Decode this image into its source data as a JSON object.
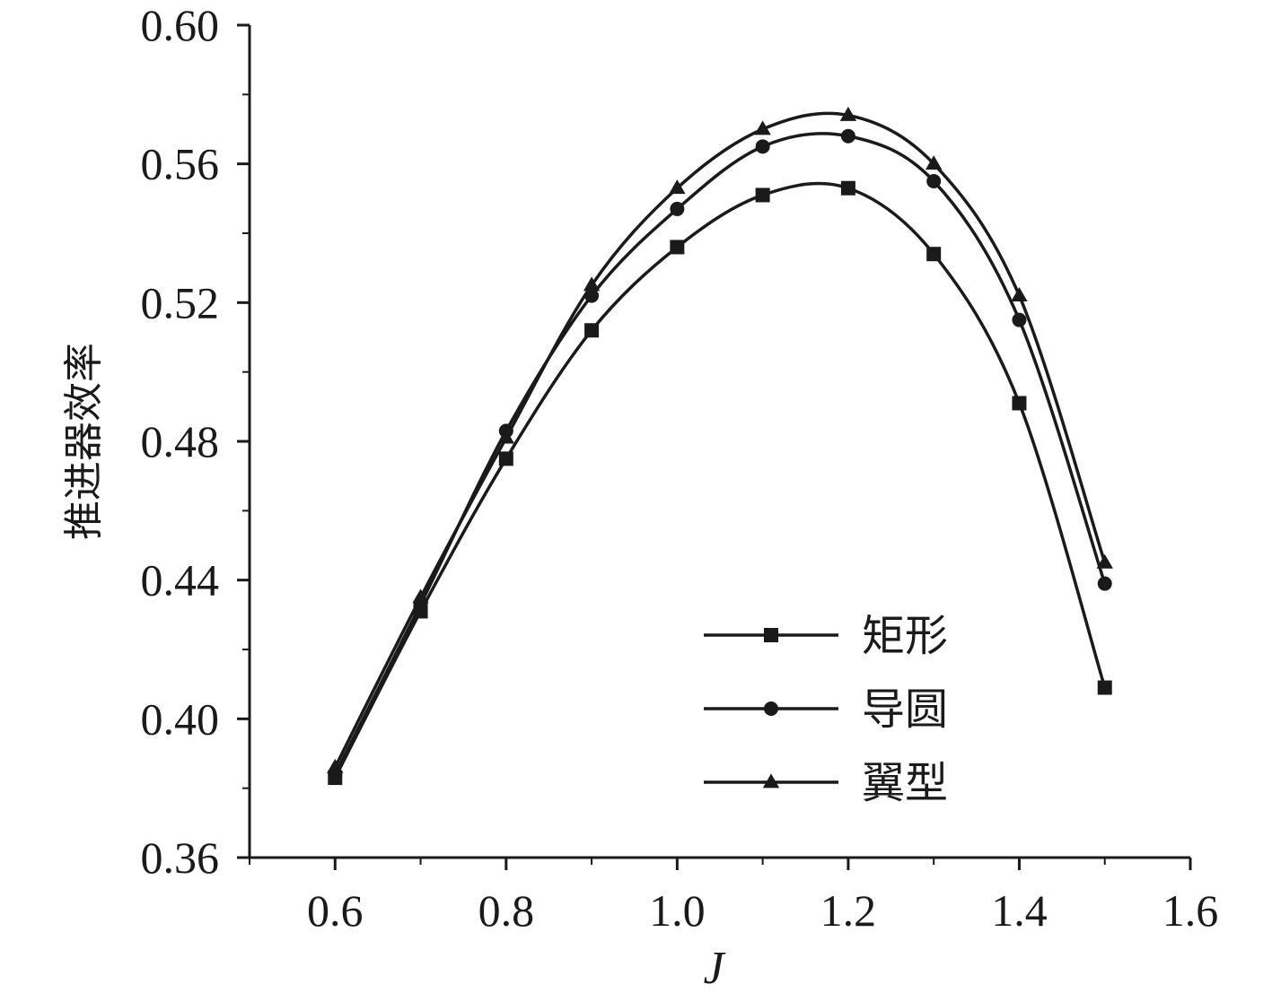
{
  "chart_data": {
    "type": "line",
    "xlabel": "J",
    "ylabel": "推进器效率",
    "xlim": [
      0.5,
      1.6
    ],
    "ylim": [
      0.36,
      0.6
    ],
    "x_ticks": [
      "0.6",
      "0.8",
      "1.0",
      "1.2",
      "1.4",
      "1.6"
    ],
    "y_ticks": [
      "0.36",
      "0.40",
      "0.44",
      "0.48",
      "0.52",
      "0.56",
      "0.60"
    ],
    "legend_position": "bottom-right",
    "grid": false,
    "x": [
      0.6,
      0.7,
      0.8,
      0.9,
      1.0,
      1.1,
      1.2,
      1.3,
      1.4,
      1.5
    ],
    "series": [
      {
        "name": "矩形",
        "marker": "square",
        "values": [
          0.383,
          0.431,
          0.475,
          0.512,
          0.536,
          0.551,
          0.553,
          0.534,
          0.491,
          0.409
        ]
      },
      {
        "name": "导圆",
        "marker": "circle",
        "values": [
          0.384,
          0.433,
          0.483,
          0.522,
          0.547,
          0.565,
          0.568,
          0.555,
          0.515,
          0.439
        ]
      },
      {
        "name": "翼型",
        "marker": "triangle",
        "values": [
          0.386,
          0.435,
          0.481,
          0.525,
          0.553,
          0.57,
          0.574,
          0.56,
          0.522,
          0.445
        ]
      }
    ]
  }
}
